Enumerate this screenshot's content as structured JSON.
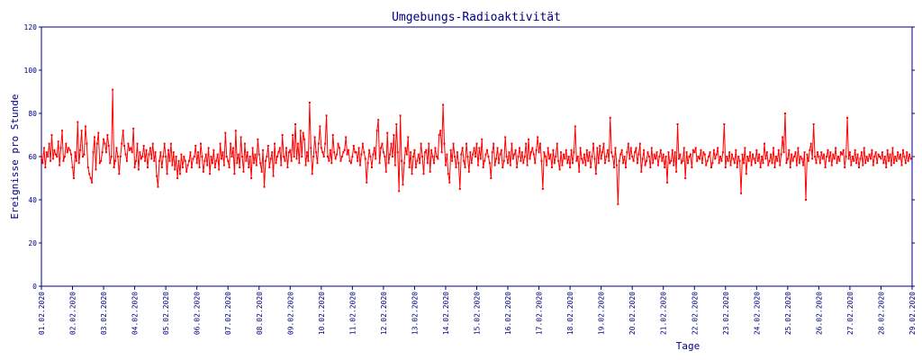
{
  "chart_data": {
    "type": "line",
    "title": "Umgebungs-Radioaktivität",
    "xlabel": "Tage",
    "ylabel": "Ereignisse pro Stunde",
    "ylim": [
      0,
      120
    ],
    "yticks": [
      "0",
      "20",
      "40",
      "60",
      "80",
      "100",
      "120"
    ],
    "x_tick_labels": [
      "01.02.2020",
      "02.02.2020",
      "03.02.2020",
      "04.02.2020",
      "05.02.2020",
      "06.02.2020",
      "07.02.2020",
      "08.02.2020",
      "09.02.2020",
      "10.02.2020",
      "11.02.2020",
      "12.02.2020",
      "13.02.2020",
      "14.02.2020",
      "15.02.2020",
      "16.02.2020",
      "17.02.2020",
      "18.02.2020",
      "19.02.2020",
      "20.02.2020",
      "21.02.2020",
      "22.02.2020",
      "23.02.2020",
      "24.02.2020",
      "25.02.2020",
      "26.02.2020",
      "27.02.2020",
      "28.02.2020",
      "29.02.2020"
    ],
    "x_range_days": [
      0,
      28
    ],
    "samples_per_day": 24,
    "grid": false,
    "legend": "none",
    "line_color": "#ff0000",
    "axis_color": "#000080",
    "text_color": "#000080",
    "series": [
      {
        "values_by_day": [
          [
            60,
            57,
            64,
            55,
            62,
            60,
            66,
            58,
            70,
            59,
            63,
            61,
            60,
            67,
            56,
            64,
            72,
            58,
            60,
            66,
            62,
            64,
            63,
            61
          ],
          [
            55,
            50,
            62,
            58,
            76,
            57,
            63,
            72,
            60,
            61,
            74,
            66,
            55,
            52,
            50,
            48,
            62,
            69,
            54,
            66,
            71,
            57,
            58,
            62
          ],
          [
            68,
            66,
            62,
            70,
            65,
            57,
            60,
            91,
            55,
            58,
            64,
            60,
            52,
            60,
            66,
            72,
            65,
            61,
            58,
            66,
            63,
            64,
            62,
            73
          ],
          [
            55,
            58,
            66,
            54,
            62,
            59,
            60,
            65,
            58,
            63,
            55,
            61,
            64,
            59,
            66,
            58,
            62,
            51,
            46,
            58,
            62,
            55,
            60,
            66
          ],
          [
            60,
            52,
            63,
            58,
            66,
            56,
            62,
            54,
            60,
            50,
            58,
            52,
            61,
            55,
            60,
            58,
            53,
            56,
            58,
            62,
            55,
            59,
            60,
            65
          ],
          [
            57,
            62,
            55,
            66,
            60,
            53,
            58,
            61,
            56,
            64,
            52,
            60,
            57,
            63,
            55,
            58,
            61,
            54,
            66,
            59,
            62,
            56,
            71,
            60
          ],
          [
            58,
            55,
            66,
            60,
            64,
            52,
            72,
            57,
            61,
            55,
            69,
            60,
            53,
            66,
            58,
            62,
            55,
            60,
            50,
            64,
            57,
            61,
            56,
            68
          ],
          [
            61,
            57,
            53,
            63,
            46,
            58,
            60,
            65,
            55,
            59,
            62,
            51,
            66,
            57,
            60,
            62,
            64,
            56,
            70,
            60,
            58,
            64,
            55,
            62
          ],
          [
            63,
            58,
            70,
            60,
            75,
            59,
            66,
            57,
            72,
            60,
            71,
            68,
            56,
            62,
            58,
            85,
            64,
            52,
            60,
            69,
            62,
            57,
            66,
            74
          ],
          [
            64,
            62,
            60,
            66,
            79,
            60,
            58,
            63,
            57,
            70,
            62,
            59,
            61,
            66,
            64,
            58,
            60,
            62,
            63,
            69,
            61,
            63,
            58,
            57
          ],
          [
            60,
            65,
            62,
            62,
            58,
            64,
            56,
            61,
            66,
            62,
            59,
            48,
            57,
            63,
            60,
            55,
            61,
            64,
            59,
            72,
            77,
            57,
            64,
            66
          ],
          [
            62,
            60,
            53,
            71,
            57,
            61,
            66,
            60,
            70,
            56,
            75,
            62,
            44,
            79,
            58,
            47,
            57,
            64,
            61,
            69,
            55,
            62,
            52,
            60
          ],
          [
            63,
            55,
            58,
            61,
            57,
            66,
            60,
            52,
            62,
            63,
            57,
            66,
            53,
            63,
            60,
            57,
            64,
            60,
            59,
            70,
            72,
            62,
            84,
            66
          ],
          [
            56,
            61,
            52,
            48,
            63,
            58,
            66,
            60,
            55,
            62,
            57,
            45,
            61,
            64,
            58,
            55,
            66,
            60,
            53,
            62,
            57,
            61,
            64,
            60
          ],
          [
            66,
            56,
            64,
            59,
            68,
            55,
            58,
            61,
            63,
            60,
            57,
            50,
            62,
            66,
            56,
            59,
            64,
            57,
            61,
            63,
            55,
            58,
            69,
            60
          ],
          [
            57,
            62,
            56,
            66,
            59,
            61,
            63,
            55,
            60,
            64,
            58,
            62,
            57,
            60,
            66,
            56,
            68,
            59,
            62,
            64,
            61,
            57,
            63,
            69
          ],
          [
            62,
            66,
            58,
            45,
            62,
            60,
            56,
            64,
            59,
            61,
            55,
            63,
            57,
            60,
            66,
            58,
            54,
            62,
            56,
            61,
            59,
            63,
            57,
            60
          ],
          [
            55,
            63,
            57,
            62,
            74,
            58,
            60,
            53,
            64,
            59,
            57,
            61,
            56,
            63,
            58,
            62,
            55,
            60,
            66,
            59,
            52,
            64,
            57,
            65
          ],
          [
            59,
            62,
            66,
            57,
            60,
            63,
            58,
            78,
            62,
            60,
            55,
            64,
            56,
            38,
            58,
            61,
            63,
            57,
            60,
            55,
            62,
            66,
            59,
            64
          ],
          [
            60,
            58,
            62,
            64,
            57,
            61,
            66,
            53,
            59,
            63,
            56,
            58,
            62,
            60,
            55,
            64,
            57,
            61,
            59,
            62,
            56,
            60,
            63,
            58
          ],
          [
            61,
            55,
            60,
            48,
            62,
            57,
            58,
            63,
            56,
            62,
            53,
            75,
            59,
            61,
            57,
            58,
            64,
            50,
            62,
            57,
            60,
            61,
            55,
            63
          ],
          [
            62,
            64,
            58,
            60,
            59,
            63,
            57,
            62,
            61,
            56,
            58,
            60,
            62,
            55,
            57,
            63,
            59,
            61,
            64,
            57,
            60,
            58,
            62,
            75
          ],
          [
            55,
            60,
            58,
            62,
            56,
            61,
            59,
            57,
            63,
            55,
            60,
            58,
            43,
            61,
            57,
            64,
            52,
            60,
            58,
            62,
            56,
            61,
            59,
            57
          ],
          [
            63,
            58,
            61,
            55,
            60,
            57,
            66,
            59,
            62,
            56,
            58,
            61,
            57,
            64,
            55,
            60,
            58,
            63,
            56,
            61,
            69,
            62,
            80,
            57
          ],
          [
            59,
            63,
            55,
            61,
            58,
            60,
            62,
            56,
            64,
            57,
            60,
            59,
            56,
            62,
            40,
            61,
            58,
            63,
            66,
            59,
            75,
            60,
            57,
            62
          ],
          [
            60,
            57,
            62,
            59,
            61,
            55,
            60,
            63,
            58,
            62,
            56,
            61,
            59,
            64,
            57,
            60,
            58,
            62,
            61,
            63,
            55,
            60,
            78,
            59
          ],
          [
            62,
            56,
            60,
            58,
            63,
            57,
            61,
            55,
            59,
            62,
            56,
            64,
            57,
            60,
            58,
            61,
            59,
            63,
            56,
            60,
            62,
            57,
            61,
            60
          ],
          [
            59,
            62,
            57,
            60,
            55,
            63,
            58,
            61,
            56,
            64,
            57,
            60,
            58,
            62,
            59,
            61,
            56,
            63,
            60,
            57,
            62,
            58,
            61,
            59
          ]
        ]
      }
    ]
  }
}
